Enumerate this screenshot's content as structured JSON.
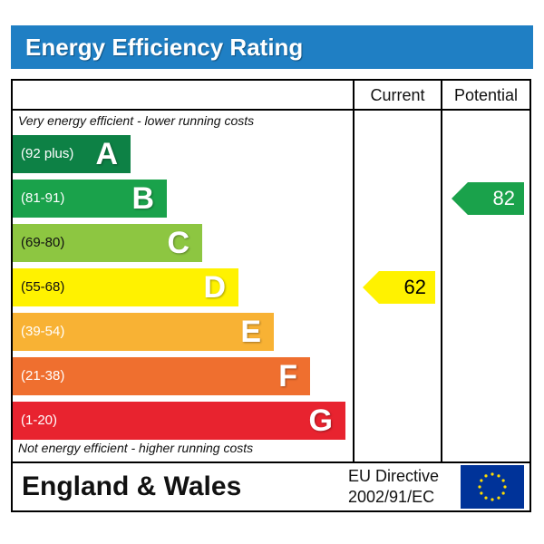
{
  "title": "Energy Efficiency Rating",
  "columns": {
    "current": "Current",
    "potential": "Potential"
  },
  "top_note": "Very energy efficient - lower running costs",
  "bottom_note": "Not energy efficient - higher running costs",
  "footer": {
    "region": "England & Wales",
    "directive_line1": "EU Directive",
    "directive_line2": "2002/91/EC",
    "flag_icon": "eu-flag-icon"
  },
  "colors": {
    "title_bar": "#1f7fc4",
    "A": "#0d8145",
    "B": "#1aa24b",
    "C": "#8dc641",
    "D": "#fff200",
    "E": "#f8b234",
    "F": "#ef6f2f",
    "G": "#e8232f",
    "flag": "#003399",
    "stars": "#ffdd00"
  },
  "chart_data": {
    "type": "table",
    "bands": [
      {
        "letter": "A",
        "range": "(92 plus)"
      },
      {
        "letter": "B",
        "range": "(81-91)"
      },
      {
        "letter": "C",
        "range": "(69-80)"
      },
      {
        "letter": "D",
        "range": "(55-68)"
      },
      {
        "letter": "E",
        "range": "(39-54)"
      },
      {
        "letter": "F",
        "range": "(21-38)"
      },
      {
        "letter": "G",
        "range": "(1-20)"
      }
    ],
    "current": {
      "value": "62",
      "band": "D"
    },
    "potential": {
      "value": "82",
      "band": "B"
    }
  }
}
